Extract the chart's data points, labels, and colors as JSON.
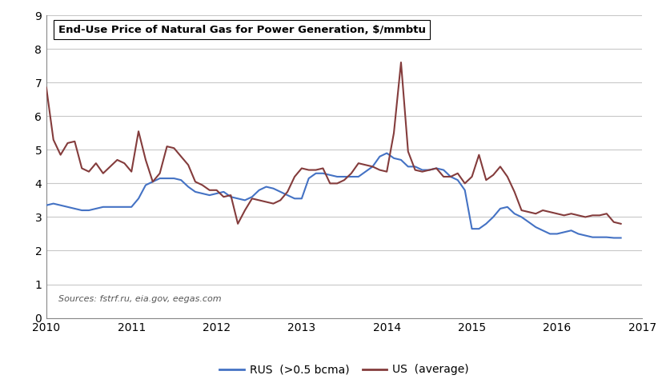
{
  "title": "End-Use Price of Natural Gas for Power Generation, $/mmbtu",
  "source_text": "Sources: fstrf.ru, eia.gov, eegas.com",
  "legend_rus": "RUS  (>0.5 bcma)",
  "legend_us": "US  (average)",
  "xlim": [
    2010,
    2017
  ],
  "ylim": [
    0,
    9
  ],
  "yticks": [
    0,
    1,
    2,
    3,
    4,
    5,
    6,
    7,
    8,
    9
  ],
  "xticks": [
    2010,
    2011,
    2012,
    2013,
    2014,
    2015,
    2016,
    2017
  ],
  "color_rus": "#4472c4",
  "color_us": "#843c3c",
  "rus_x": [
    2010.0,
    2010.083,
    2010.167,
    2010.25,
    2010.333,
    2010.417,
    2010.5,
    2010.583,
    2010.667,
    2010.75,
    2010.833,
    2010.917,
    2011.0,
    2011.083,
    2011.167,
    2011.25,
    2011.333,
    2011.417,
    2011.5,
    2011.583,
    2011.667,
    2011.75,
    2011.833,
    2011.917,
    2012.0,
    2012.083,
    2012.167,
    2012.25,
    2012.333,
    2012.417,
    2012.5,
    2012.583,
    2012.667,
    2012.75,
    2012.833,
    2012.917,
    2013.0,
    2013.083,
    2013.167,
    2013.25,
    2013.333,
    2013.417,
    2013.5,
    2013.583,
    2013.667,
    2013.75,
    2013.833,
    2013.917,
    2014.0,
    2014.083,
    2014.167,
    2014.25,
    2014.333,
    2014.417,
    2014.5,
    2014.583,
    2014.667,
    2014.75,
    2014.833,
    2014.917,
    2015.0,
    2015.083,
    2015.167,
    2015.25,
    2015.333,
    2015.417,
    2015.5,
    2015.583,
    2015.667,
    2015.75,
    2015.833,
    2015.917,
    2016.0,
    2016.083,
    2016.167,
    2016.25,
    2016.333,
    2016.417,
    2016.5,
    2016.583,
    2016.667,
    2016.75
  ],
  "rus_y": [
    3.35,
    3.4,
    3.35,
    3.3,
    3.25,
    3.2,
    3.2,
    3.25,
    3.3,
    3.3,
    3.3,
    3.3,
    3.3,
    3.55,
    3.95,
    4.05,
    4.15,
    4.15,
    4.15,
    4.1,
    3.9,
    3.75,
    3.7,
    3.65,
    3.7,
    3.75,
    3.6,
    3.55,
    3.5,
    3.6,
    3.8,
    3.9,
    3.85,
    3.75,
    3.65,
    3.55,
    3.55,
    4.15,
    4.3,
    4.3,
    4.25,
    4.2,
    4.2,
    4.2,
    4.2,
    4.35,
    4.5,
    4.8,
    4.9,
    4.75,
    4.7,
    4.5,
    4.5,
    4.4,
    4.4,
    4.45,
    4.4,
    4.2,
    4.1,
    3.8,
    2.65,
    2.65,
    2.8,
    3.0,
    3.25,
    3.3,
    3.1,
    3.0,
    2.85,
    2.7,
    2.6,
    2.5,
    2.5,
    2.55,
    2.6,
    2.5,
    2.45,
    2.4,
    2.4,
    2.4,
    2.38,
    2.38
  ],
  "us_x": [
    2010.0,
    2010.083,
    2010.167,
    2010.25,
    2010.333,
    2010.417,
    2010.5,
    2010.583,
    2010.667,
    2010.75,
    2010.833,
    2010.917,
    2011.0,
    2011.083,
    2011.167,
    2011.25,
    2011.333,
    2011.417,
    2011.5,
    2011.583,
    2011.667,
    2011.75,
    2011.833,
    2011.917,
    2012.0,
    2012.083,
    2012.167,
    2012.25,
    2012.333,
    2012.417,
    2012.5,
    2012.583,
    2012.667,
    2012.75,
    2012.833,
    2012.917,
    2013.0,
    2013.083,
    2013.167,
    2013.25,
    2013.333,
    2013.417,
    2013.5,
    2013.583,
    2013.667,
    2013.75,
    2013.833,
    2013.917,
    2014.0,
    2014.083,
    2014.167,
    2014.25,
    2014.333,
    2014.417,
    2014.5,
    2014.583,
    2014.667,
    2014.75,
    2014.833,
    2014.917,
    2015.0,
    2015.083,
    2015.167,
    2015.25,
    2015.333,
    2015.417,
    2015.5,
    2015.583,
    2015.667,
    2015.75,
    2015.833,
    2015.917,
    2016.0,
    2016.083,
    2016.167,
    2016.25,
    2016.333,
    2016.417,
    2016.5,
    2016.583,
    2016.667,
    2016.75
  ],
  "us_y": [
    6.85,
    5.3,
    4.85,
    5.2,
    5.25,
    4.45,
    4.35,
    4.6,
    4.3,
    4.5,
    4.7,
    4.6,
    4.35,
    5.55,
    4.7,
    4.05,
    4.3,
    5.1,
    5.05,
    4.8,
    4.55,
    4.05,
    3.95,
    3.8,
    3.8,
    3.6,
    3.65,
    2.8,
    3.2,
    3.55,
    3.5,
    3.45,
    3.4,
    3.5,
    3.75,
    4.2,
    4.45,
    4.4,
    4.4,
    4.45,
    4.0,
    4.0,
    4.1,
    4.3,
    4.6,
    4.55,
    4.5,
    4.4,
    4.35,
    5.5,
    7.6,
    4.95,
    4.4,
    4.35,
    4.4,
    4.45,
    4.2,
    4.2,
    4.3,
    4.0,
    4.2,
    4.85,
    4.1,
    4.25,
    4.5,
    4.2,
    3.75,
    3.2,
    3.15,
    3.1,
    3.2,
    3.15,
    3.1,
    3.05,
    3.1,
    3.05,
    3.0,
    3.05,
    3.05,
    3.1,
    2.85,
    2.8
  ]
}
